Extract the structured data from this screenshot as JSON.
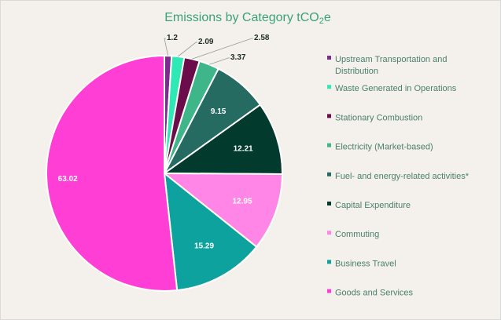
{
  "chart_data": {
    "type": "pie",
    "title_main": "Emissions by Category tCO",
    "title_sub": "2",
    "title_tail": "e",
    "title_color": "#3aa17a",
    "legend_position": "right",
    "slices": [
      {
        "name": "Upstream Transportation and Distribution",
        "legend_lines": [
          "Upstream Transportation and",
          "Distribution"
        ],
        "value": 1.2,
        "label": "1.2",
        "color": "#7b2d8e",
        "label_color": "#1f2d1f"
      },
      {
        "name": "Waste Generated in Operations",
        "legend_lines": [
          "Waste Generated in Operations"
        ],
        "value": 2.09,
        "label": "2.09",
        "color": "#2ee8b6",
        "label_color": "#1f2d1f"
      },
      {
        "name": "Stationary Combustion",
        "legend_lines": [
          "Stationary Combustion"
        ],
        "value": 2.58,
        "label": "2.58",
        "color": "#6b0d4b",
        "label_color": "#1f2d1f"
      },
      {
        "name": "Electricity (Market-based)",
        "legend_lines": [
          "Electricity (Market-based)"
        ],
        "value": 3.37,
        "label": "3.37",
        "color": "#3fb58a",
        "label_color": "#1f2d1f"
      },
      {
        "name": "Fuel- and energy-related activities*",
        "legend_lines": [
          "Fuel- and energy-related activities*"
        ],
        "value": 9.15,
        "label": "9.15",
        "color": "#256b61",
        "label_color": "#ffffff"
      },
      {
        "name": "Capital Expenditure",
        "legend_lines": [
          "Capital Expenditure"
        ],
        "value": 12.21,
        "label": "12.21",
        "color": "#033a2e",
        "label_color": "#ffffff"
      },
      {
        "name": "Commuting",
        "legend_lines": [
          "Commuting"
        ],
        "value": 12.95,
        "label": "12.95",
        "color": "#ff86e6",
        "label_color": "#ffffff"
      },
      {
        "name": "Business Travel",
        "legend_lines": [
          "Business Travel"
        ],
        "value": 15.29,
        "label": "15.29",
        "color": "#0ea29e",
        "label_color": "#ffffff"
      },
      {
        "name": "Goods and Services",
        "legend_lines": [
          "Goods and Services"
        ],
        "value": 63.02,
        "label": "63.02",
        "color": "#ff3ed6",
        "label_color": "#ffffff"
      }
    ]
  }
}
